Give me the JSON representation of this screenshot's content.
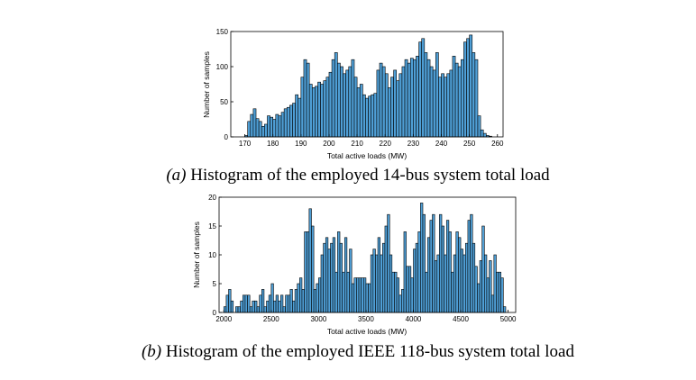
{
  "chart_data": [
    {
      "type": "bar",
      "xlabel": "Total active loads (MW)",
      "ylabel": "Number of samples",
      "xlim": [
        165,
        262
      ],
      "ylim": [
        0,
        150
      ],
      "xticks": [
        170,
        180,
        190,
        200,
        210,
        220,
        230,
        240,
        250,
        260
      ],
      "yticks": [
        0,
        50,
        100,
        150
      ],
      "caption_label": "(a)",
      "caption_text": " Histogram of the employed 14-bus system total load",
      "bin_start": 170,
      "bin_width": 1,
      "values": [
        2,
        22,
        32,
        40,
        26,
        22,
        15,
        18,
        30,
        28,
        25,
        32,
        30,
        35,
        40,
        42,
        45,
        48,
        60,
        55,
        85,
        110,
        105,
        75,
        70,
        72,
        78,
        75,
        80,
        85,
        92,
        110,
        120,
        105,
        100,
        90,
        95,
        100,
        110,
        85,
        70,
        75,
        60,
        55,
        58,
        60,
        62,
        95,
        105,
        100,
        90,
        70,
        85,
        95,
        80,
        90,
        100,
        110,
        105,
        112,
        110,
        115,
        135,
        140,
        120,
        110,
        100,
        95,
        120,
        85,
        90,
        85,
        90,
        95,
        115,
        105,
        100,
        110,
        135,
        140,
        145,
        120,
        110,
        30,
        10,
        5,
        2,
        1
      ]
    },
    {
      "type": "bar",
      "xlabel": "Total active loads (MW)",
      "ylabel": "Number of samples",
      "xlim": [
        1950,
        5080
      ],
      "ylim": [
        0,
        20
      ],
      "xticks": [
        2000,
        2500,
        3000,
        3500,
        4000,
        4500,
        5000
      ],
      "yticks": [
        0,
        5,
        10,
        15,
        20
      ],
      "caption_label": "(b)",
      "caption_text": " Histogram of the employed IEEE 118-bus system total load",
      "bin_start": 2000,
      "bin_width": 25,
      "values": [
        1,
        3,
        4,
        2,
        0,
        1,
        1,
        2,
        3,
        3,
        3,
        1,
        2,
        2,
        1,
        3,
        4,
        1,
        2,
        3,
        5,
        2,
        3,
        2,
        3,
        1,
        3,
        3,
        4,
        2,
        4,
        5,
        6,
        4,
        14,
        14,
        18,
        15,
        4,
        5,
        6,
        10,
        12,
        13,
        11,
        12,
        13,
        7,
        14,
        12,
        7,
        13,
        7,
        11,
        5,
        6,
        6,
        6,
        6,
        6,
        5,
        5,
        10,
        11,
        10,
        13,
        10,
        12,
        15,
        17,
        10,
        7,
        7,
        6,
        3,
        4,
        14,
        8,
        8,
        6,
        11,
        12,
        14,
        19,
        17,
        7,
        13,
        16,
        17,
        9,
        10,
        17,
        15,
        10,
        16,
        14,
        7,
        10,
        14,
        13,
        11,
        10,
        12,
        16,
        17,
        12,
        8,
        5,
        9,
        15,
        10,
        6,
        9,
        3,
        10,
        7,
        7,
        6,
        1
      ]
    }
  ]
}
